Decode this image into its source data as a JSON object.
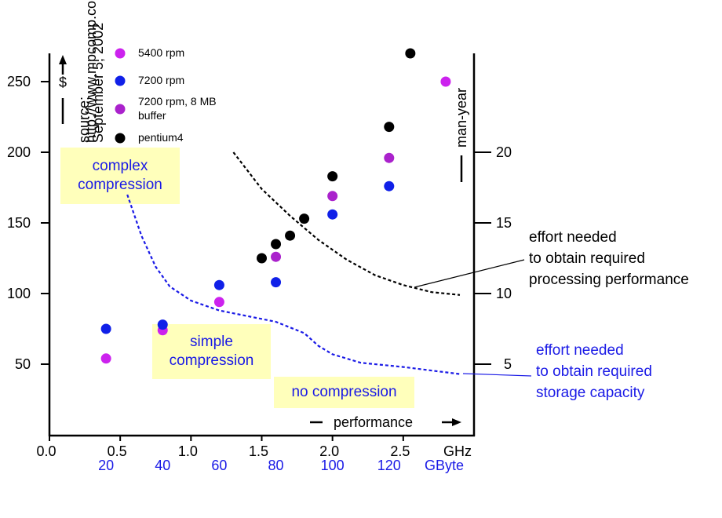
{
  "chart_data": {
    "type": "scatter",
    "xlim": [
      0,
      3
    ],
    "xticks": [
      {
        "value": 0,
        "label": "0.0"
      },
      0.5,
      {
        "value": 1,
        "label": "1.0"
      },
      1.5,
      {
        "value": 2,
        "label": "2.0"
      },
      2.5
    ],
    "x_unit": "GHz",
    "x2lim": [
      0,
      150
    ],
    "x2ticks": [
      20,
      40,
      60,
      80,
      100,
      120
    ],
    "x2_unit": "GByte",
    "x2_color": "#1a1ae6",
    "xlabel": "performance",
    "ylim": [
      0,
      270
    ],
    "yticks": [
      50,
      100,
      150,
      200,
      250
    ],
    "ylabel": "$",
    "y2lim": [
      0,
      27
    ],
    "y2ticks": [
      5,
      10,
      15,
      20
    ],
    "y2label": "man-year",
    "source": [
      "source:",
      "http://www.mpcomp.com/",
      "September 5, 2002"
    ],
    "series": [
      {
        "name": "5400 rpm",
        "color": "#cc22ee",
        "x": [
          0.4,
          0.8,
          1.2,
          2.8
        ],
        "values": [
          54,
          74,
          94,
          250
        ]
      },
      {
        "name": "7200 rpm",
        "color": "#1020e8",
        "x": [
          0.4,
          0.8,
          1.2,
          1.6,
          2.0,
          2.4
        ],
        "values": [
          75,
          78,
          106,
          108,
          156,
          176
        ]
      },
      {
        "name": "7200 rpm, 8 MB buffer",
        "color": "#aa22cc",
        "x": [
          1.6,
          2.0,
          2.4
        ],
        "values": [
          126,
          169,
          196
        ]
      },
      {
        "name": "pentium4",
        "color": "#000000",
        "x": [
          1.5,
          1.6,
          1.7,
          1.8,
          2.0,
          2.4,
          2.55
        ],
        "values": [
          125,
          135,
          141,
          153,
          183,
          218,
          270
        ]
      },
      {
        "type": "line",
        "axis": "y2",
        "dashed": true,
        "color": "#000000",
        "x": [
          1.3,
          1.5,
          1.7,
          1.9,
          2.1,
          2.3,
          2.5,
          2.7,
          2.9
        ],
        "values": [
          20,
          17.4,
          15.5,
          13.8,
          12.4,
          11.3,
          10.6,
          10.1,
          9.9
        ]
      },
      {
        "type": "line",
        "axis": "y2",
        "dashed": true,
        "color": "#1a1ae6",
        "x": [
          0.55,
          0.65,
          0.75,
          0.85,
          1.0,
          1.2,
          1.4,
          1.6,
          1.8,
          1.9,
          2.0,
          2.2,
          2.5,
          2.9
        ],
        "values": [
          17,
          14.1,
          11.9,
          10.5,
          9.5,
          8.8,
          8.4,
          8.0,
          7.2,
          6.3,
          5.7,
          5.1,
          4.8,
          4.3
        ]
      }
    ],
    "annotations": [
      {
        "lines": [
          "complex",
          "compression"
        ],
        "color": "#1a1ae6",
        "background": "#ffffbb"
      },
      {
        "lines": [
          "simple",
          "compression"
        ],
        "color": "#1a1ae6",
        "background": "#ffffbb"
      },
      {
        "lines": [
          "no compression"
        ],
        "color": "#1a1ae6",
        "background": "#ffffbb"
      },
      {
        "lines": [
          "effort needed",
          "to obtain required",
          "processing performance"
        ],
        "color": "#000000"
      },
      {
        "lines": [
          "effort needed",
          "to obtain required",
          "storage capacity"
        ],
        "color": "#1a1ae6"
      }
    ]
  }
}
